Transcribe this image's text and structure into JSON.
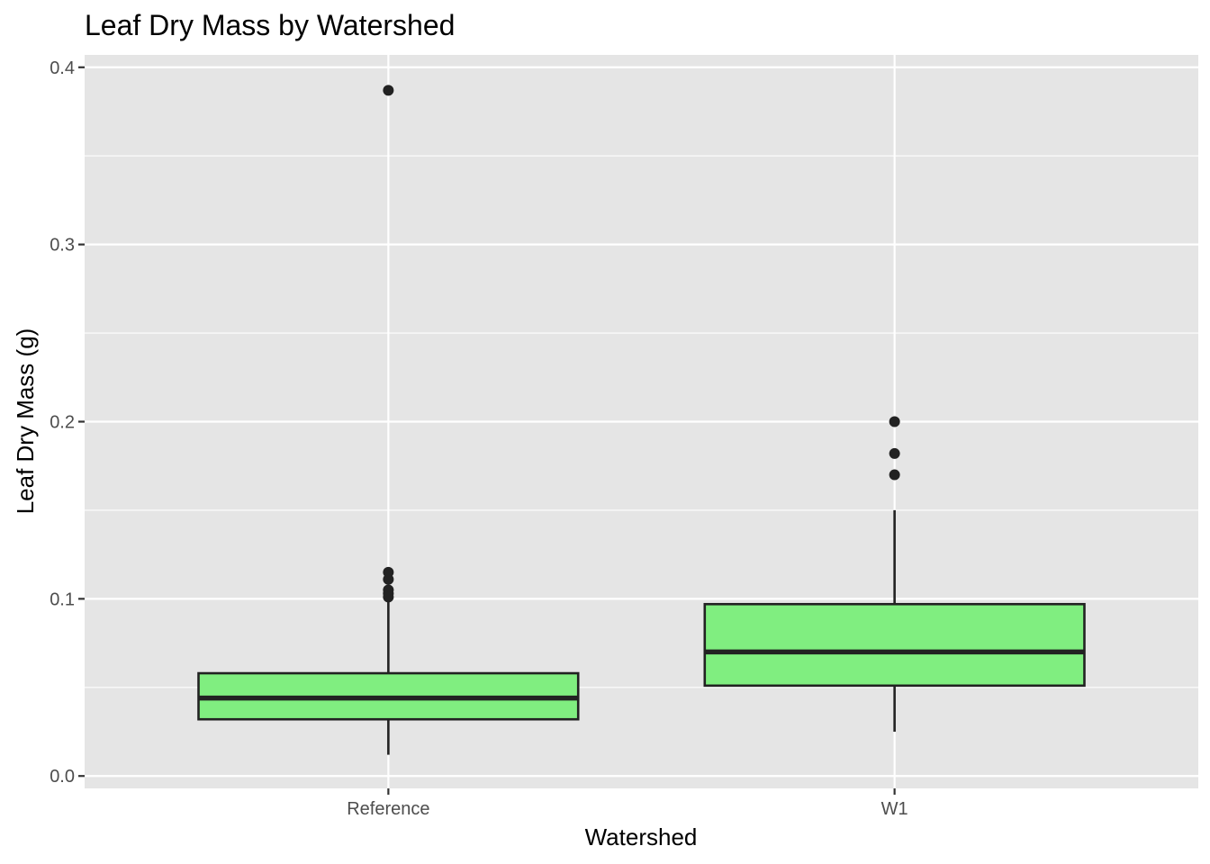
{
  "chart_data": {
    "type": "box",
    "title": "Leaf Dry Mass by Watershed",
    "xlabel": "Watershed",
    "ylabel": "Leaf Dry Mass (g)",
    "ylim": [
      -0.007,
      0.407
    ],
    "yticks": [
      0.0,
      0.1,
      0.2,
      0.3,
      0.4
    ],
    "ytick_labels": [
      "0.0",
      "0.1",
      "0.2",
      "0.3",
      "0.4"
    ],
    "grid": true,
    "colors": {
      "panel": "#e5e5e5",
      "grid": "#ffffff",
      "box_fill": "#80ee80",
      "box_stroke": "#222222"
    },
    "categories": [
      "Reference",
      "W1"
    ],
    "boxes": [
      {
        "category": "Reference",
        "min": 0.012,
        "q1": 0.032,
        "median": 0.044,
        "q3": 0.058,
        "max": 0.1,
        "outliers": [
          0.387,
          0.115,
          0.111,
          0.105,
          0.103,
          0.101
        ]
      },
      {
        "category": "W1",
        "min": 0.025,
        "q1": 0.051,
        "median": 0.07,
        "q3": 0.097,
        "max": 0.15,
        "outliers": [
          0.2,
          0.182,
          0.17
        ]
      }
    ]
  }
}
